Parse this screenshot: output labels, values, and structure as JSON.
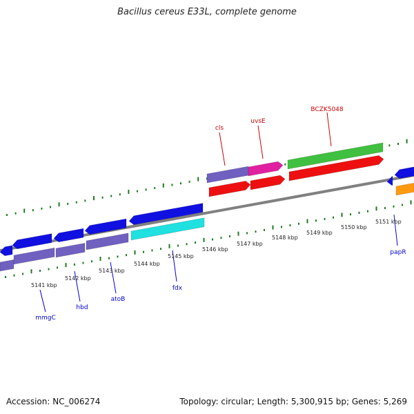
{
  "title": "Bacillus cereus E33L, complete genome",
  "footer": {
    "accession": "Accession: NC_006274",
    "topology": "Topology: circular; Length: 5,300,915 bp; Genes: 5,269"
  },
  "colors": {
    "top_gene_label": "#cc0000",
    "bottom_gene_label": "#0000cc",
    "tick": "#1e7a1e",
    "backbone": "#808080",
    "blue": "#1010e0",
    "slate": "#7060c0",
    "magenta": "#e020a0",
    "green": "#40c040",
    "red": "#ee1010",
    "cyan": "#20e0e0",
    "orange": "#ff9a10"
  },
  "map": {
    "ticks_kbp": [
      "5141 kbp",
      "5142 kbp",
      "5143 kbp",
      "5144 kbp",
      "5145 kbp",
      "5146 kbp",
      "5147 kbp",
      "5148 kbp",
      "5149 kbp",
      "5150 kbp",
      "5151 kbp"
    ],
    "genes_top": [
      "cls",
      "uvsE",
      "BCZK5048"
    ],
    "genes_bottom": [
      "mmgC",
      "hbd",
      "atoB",
      "fdx",
      "papR"
    ]
  }
}
